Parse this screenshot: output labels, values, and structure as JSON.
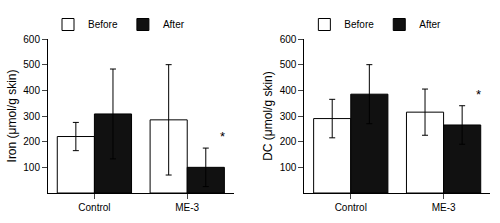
{
  "chart_data": [
    {
      "type": "bar",
      "ylabel": "Iron (μmol/g skin)",
      "categories": [
        "Control",
        "ME-3"
      ],
      "series": [
        {
          "name": "Before",
          "color": "#ffffff",
          "values": [
            220,
            285
          ],
          "errors": [
            55,
            215
          ]
        },
        {
          "name": "After",
          "color": "#111111",
          "values": [
            308,
            100
          ],
          "errors": [
            175,
            75
          ]
        }
      ],
      "ylim": [
        0,
        600
      ],
      "yticks": [
        100,
        200,
        300,
        400,
        500,
        600
      ],
      "grid": false,
      "legend": "upper left",
      "annotations": [
        {
          "text": "*",
          "category": "ME-3",
          "series": "After"
        }
      ]
    },
    {
      "type": "bar",
      "ylabel": "DC (μmol/g skin)",
      "categories": [
        "Control",
        "ME-3"
      ],
      "series": [
        {
          "name": "Before",
          "color": "#ffffff",
          "values": [
            290,
            315
          ],
          "errors": [
            75,
            90
          ]
        },
        {
          "name": "After",
          "color": "#111111",
          "values": [
            385,
            265
          ],
          "errors": [
            115,
            75
          ]
        }
      ],
      "ylim": [
        0,
        600
      ],
      "yticks": [
        100,
        200,
        300,
        400,
        500,
        600
      ],
      "grid": false,
      "legend": "upper left",
      "annotations": [
        {
          "text": "*",
          "category": "ME-3",
          "series": "After"
        }
      ]
    }
  ]
}
